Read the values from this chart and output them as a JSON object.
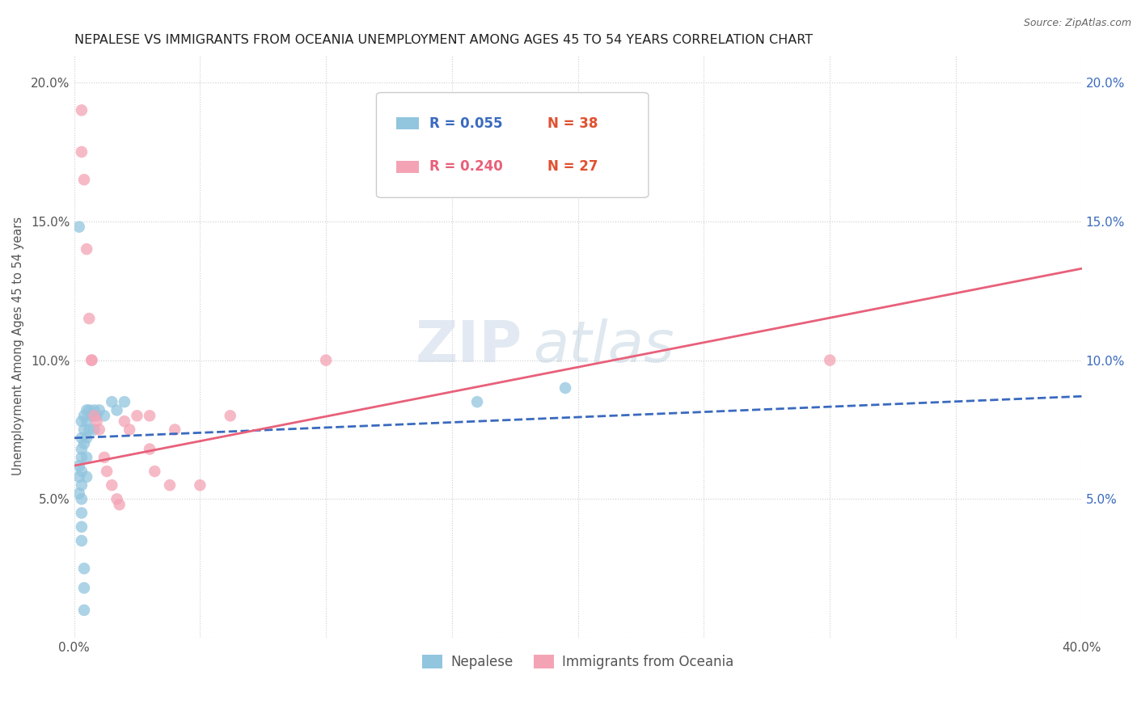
{
  "title": "NEPALESE VS IMMIGRANTS FROM OCEANIA UNEMPLOYMENT AMONG AGES 45 TO 54 YEARS CORRELATION CHART",
  "source": "Source: ZipAtlas.com",
  "ylabel": "Unemployment Among Ages 45 to 54 years",
  "xlim": [
    0.0,
    0.4
  ],
  "ylim": [
    0.0,
    0.21
  ],
  "xticks": [
    0.0,
    0.05,
    0.1,
    0.15,
    0.2,
    0.25,
    0.3,
    0.35,
    0.4
  ],
  "yticks": [
    0.0,
    0.05,
    0.1,
    0.15,
    0.2
  ],
  "watermark_zip": "ZIP",
  "watermark_atlas": "atlas",
  "legend_R1": "R = 0.055",
  "legend_N1": "N = 38",
  "legend_R2": "R = 0.240",
  "legend_N2": "N = 27",
  "nepalese_color": "#92c5de",
  "oceania_color": "#f4a3b5",
  "line_blue_color": "#3a6abf",
  "line_pink_color": "#e8607a",
  "blue_line_y0": 0.072,
  "blue_line_y1": 0.087,
  "pink_line_y0": 0.062,
  "pink_line_y1": 0.133,
  "nepalese_x": [
    0.002,
    0.002,
    0.002,
    0.003,
    0.003,
    0.003,
    0.003,
    0.003,
    0.003,
    0.003,
    0.003,
    0.003,
    0.003,
    0.004,
    0.004,
    0.004,
    0.004,
    0.004,
    0.004,
    0.005,
    0.005,
    0.005,
    0.005,
    0.005,
    0.006,
    0.006,
    0.007,
    0.008,
    0.008,
    0.009,
    0.01,
    0.012,
    0.015,
    0.017,
    0.02,
    0.16,
    0.195,
    0.002
  ],
  "nepalese_y": [
    0.062,
    0.058,
    0.052,
    0.078,
    0.072,
    0.068,
    0.065,
    0.06,
    0.055,
    0.05,
    0.045,
    0.04,
    0.035,
    0.08,
    0.075,
    0.07,
    0.025,
    0.018,
    0.01,
    0.082,
    0.078,
    0.072,
    0.065,
    0.058,
    0.082,
    0.075,
    0.08,
    0.082,
    0.075,
    0.08,
    0.082,
    0.08,
    0.085,
    0.082,
    0.085,
    0.085,
    0.09,
    0.148
  ],
  "oceania_x": [
    0.003,
    0.003,
    0.004,
    0.005,
    0.006,
    0.007,
    0.008,
    0.009,
    0.01,
    0.012,
    0.013,
    0.015,
    0.017,
    0.018,
    0.02,
    0.022,
    0.025,
    0.03,
    0.032,
    0.038,
    0.05,
    0.062,
    0.1,
    0.03,
    0.04,
    0.3,
    0.007
  ],
  "oceania_y": [
    0.19,
    0.175,
    0.165,
    0.14,
    0.115,
    0.1,
    0.08,
    0.078,
    0.075,
    0.065,
    0.06,
    0.055,
    0.05,
    0.048,
    0.078,
    0.075,
    0.08,
    0.068,
    0.06,
    0.055,
    0.055,
    0.08,
    0.1,
    0.08,
    0.075,
    0.1,
    0.1
  ]
}
